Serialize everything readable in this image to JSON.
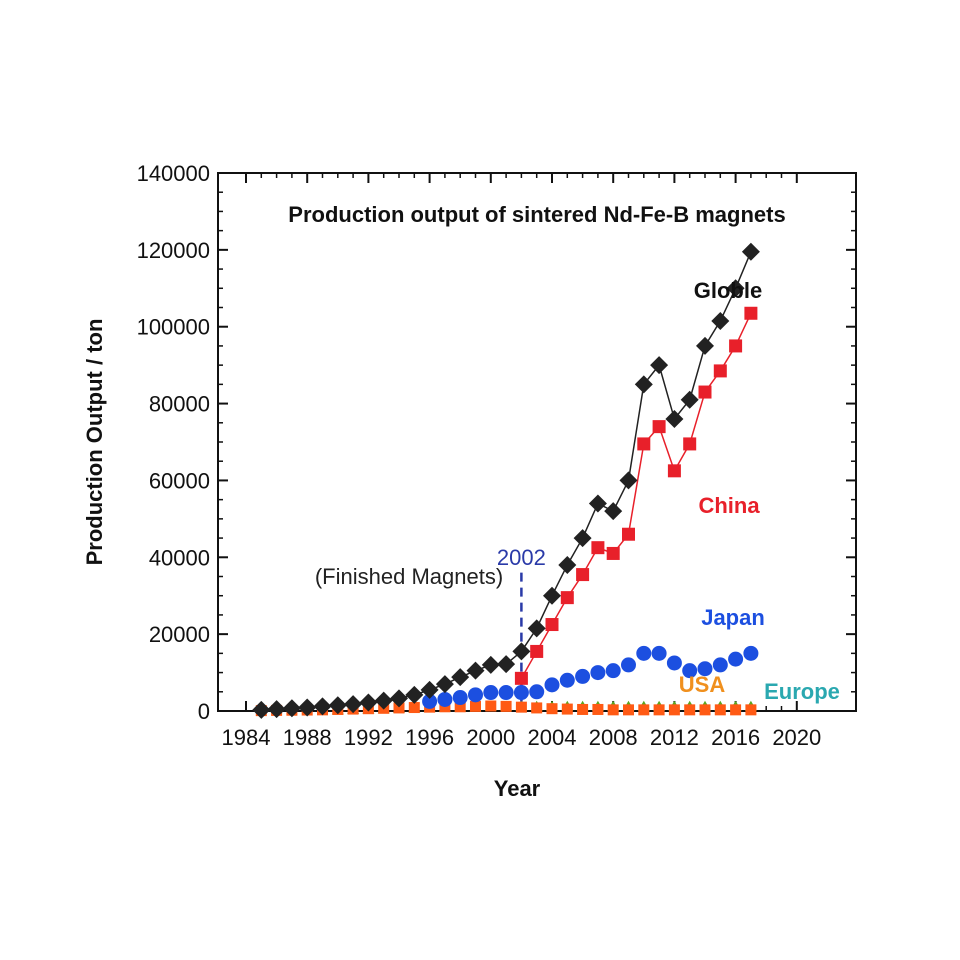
{
  "chart_data": {
    "type": "line",
    "title": "Production output of sintered Nd-Fe-B magnets",
    "xlabel": "Year",
    "ylabel": "Production Output / ton",
    "xlim": [
      1984,
      2020
    ],
    "ylim": [
      0,
      140000
    ],
    "x_ticks": [
      1984,
      1988,
      1992,
      1996,
      2000,
      2004,
      2008,
      2012,
      2016,
      2020
    ],
    "x_tick_labels": [
      "1984",
      "1988",
      "1992",
      "1996",
      "2000",
      "2004",
      "2008",
      "2012",
      "2016",
      "2020"
    ],
    "y_ticks": [
      0,
      20000,
      40000,
      60000,
      80000,
      100000,
      120000,
      140000
    ],
    "y_tick_labels": [
      "0",
      "20000",
      "40000",
      "60000",
      "80000",
      "100000",
      "120000",
      "140000"
    ],
    "grid": false,
    "legend": "none",
    "annotations": [
      {
        "text": "(Finished Magnets)",
        "x": 1988.5,
        "y": 33000,
        "color": "#222222"
      },
      {
        "text": "2002",
        "x": 2002,
        "y": 38000,
        "color": "#2a3aa8"
      }
    ],
    "marker_line": {
      "x": 2002,
      "y_from": 0,
      "y_to": 36000,
      "color": "#2a3aa8"
    },
    "series": [
      {
        "name": "Globle",
        "color": "#222222",
        "marker": "diamond",
        "connected": true,
        "x": [
          1985,
          1986,
          1987,
          1988,
          1989,
          1990,
          1991,
          1992,
          1993,
          1994,
          1995,
          1996,
          1997,
          1998,
          1999,
          2000,
          2001,
          2002,
          2003,
          2004,
          2005,
          2006,
          2007,
          2008,
          2009,
          2010,
          2011,
          2012,
          2013,
          2014,
          2015,
          2016,
          2017
        ],
        "y": [
          300,
          500,
          700,
          900,
          1200,
          1500,
          1800,
          2200,
          2700,
          3300,
          4200,
          5500,
          7000,
          8800,
          10500,
          12000,
          12200,
          15500,
          21500,
          30000,
          38000,
          45000,
          54000,
          52000,
          60000,
          85000,
          90000,
          76000,
          81000,
          95000,
          101500,
          110000,
          119500
        ]
      },
      {
        "name": "China",
        "color": "#e8202a",
        "marker": "square",
        "connected": true,
        "x": [
          2002,
          2003,
          2004,
          2005,
          2006,
          2007,
          2008,
          2009,
          2010,
          2011,
          2012,
          2013,
          2014,
          2015,
          2016,
          2017
        ],
        "y": [
          8500,
          15500,
          22500,
          29500,
          35500,
          42500,
          41000,
          46000,
          69500,
          74000,
          62500,
          69500,
          83000,
          88500,
          95000,
          103500
        ]
      },
      {
        "name": "Japan",
        "color": "#1c4fe0",
        "marker": "circle",
        "connected": false,
        "x": [
          1996,
          1997,
          1998,
          1999,
          2000,
          2001,
          2002,
          2003,
          2004,
          2005,
          2006,
          2007,
          2008,
          2009,
          2010,
          2011,
          2012,
          2013,
          2014,
          2015,
          2016,
          2017
        ],
        "y": [
          2500,
          3000,
          3500,
          4200,
          4800,
          4800,
          4800,
          5000,
          6800,
          8000,
          9000,
          10000,
          10500,
          12000,
          15000,
          15000,
          12500,
          10500,
          11000,
          12000,
          13500,
          15000
        ]
      },
      {
        "name": "USA",
        "color": "#ff5a14",
        "marker": "square-small",
        "connected": false,
        "x": [
          1985,
          1986,
          1987,
          1988,
          1989,
          1990,
          1991,
          1992,
          1993,
          1994,
          1995,
          1996,
          1997,
          1998,
          1999,
          2000,
          2001,
          2002,
          2003,
          2004,
          2005,
          2006,
          2007,
          2008,
          2009,
          2010,
          2011,
          2012,
          2013,
          2014,
          2015,
          2016,
          2017
        ],
        "y": [
          100,
          150,
          200,
          250,
          300,
          400,
          500,
          600,
          700,
          800,
          900,
          1000,
          1100,
          1100,
          1200,
          1300,
          1200,
          1000,
          800,
          600,
          500,
          400,
          400,
          300,
          300,
          300,
          300,
          300,
          300,
          300,
          300,
          300,
          300
        ]
      },
      {
        "name": "Europe",
        "color": "#5aa61e",
        "marker": "triangle",
        "connected": false,
        "x": [
          1990,
          1991,
          1992,
          1993,
          1994,
          1995,
          1996,
          1997,
          1998,
          1999,
          2000,
          2001,
          2002,
          2003,
          2004,
          2005,
          2006,
          2007,
          2008,
          2009,
          2010,
          2011,
          2012,
          2013,
          2014,
          2015,
          2016,
          2017
        ],
        "y": [
          200,
          300,
          400,
          500,
          600,
          700,
          800,
          900,
          1000,
          1000,
          1100,
          1100,
          1100,
          1100,
          1100,
          1100,
          1100,
          1100,
          1100,
          1100,
          1100,
          1100,
          1100,
          1100,
          1100,
          1100,
          1100,
          1100
        ]
      }
    ],
    "series_labels": [
      {
        "text": "Globle",
        "color": "#111111"
      },
      {
        "text": "China",
        "color": "#e8202a"
      },
      {
        "text": "Japan",
        "color": "#1c4fe0"
      },
      {
        "text": "USA",
        "color": "#f0901e"
      },
      {
        "text": "Europe",
        "color": "#2aa8b0"
      }
    ]
  }
}
